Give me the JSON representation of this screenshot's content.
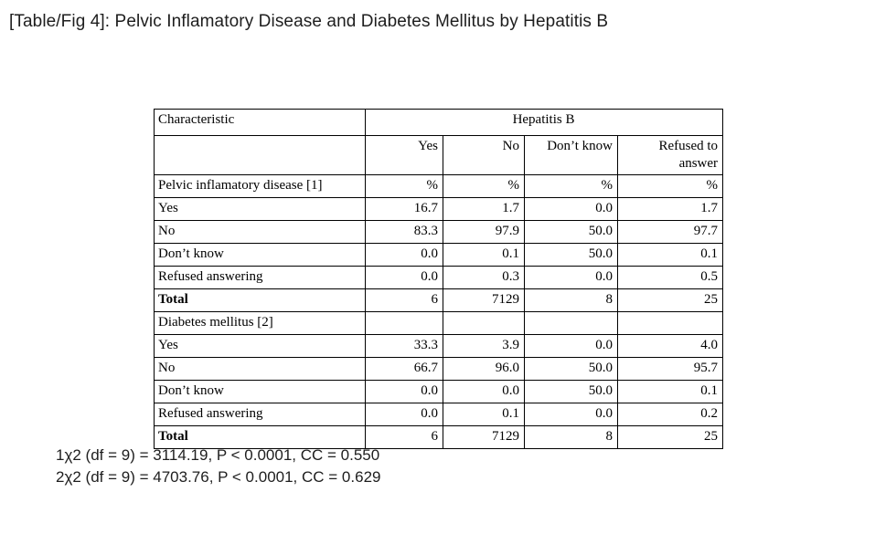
{
  "page": {
    "title": "[Table/Fig 4]: Pelvic Inflamatory Disease and Diabetes Mellitus by Hepatitis B"
  },
  "table": {
    "corner_header": "Characteristic",
    "group_header": "Hepatitis B",
    "columns": [
      "Yes",
      "No",
      "Don’t know",
      "Refused to answer"
    ],
    "sections": [
      {
        "label": "Pelvic inflamatory disease [1]",
        "units": [
          "%",
          "%",
          "%",
          "%"
        ],
        "rows": [
          {
            "label": "Yes",
            "values": [
              "16.7",
              "1.7",
              "0.0",
              "1.7"
            ]
          },
          {
            "label": "No",
            "values": [
              "83.3",
              "97.9",
              "50.0",
              "97.7"
            ]
          },
          {
            "label": "Don’t know",
            "values": [
              "0.0",
              "0.1",
              "50.0",
              "0.1"
            ]
          },
          {
            "label": "Refused answering",
            "values": [
              "0.0",
              "0.3",
              "0.0",
              "0.5"
            ]
          }
        ],
        "total": {
          "label": "Total",
          "values": [
            "6",
            "7129",
            "8",
            "25"
          ]
        }
      },
      {
        "label": "Diabetes mellitus [2]",
        "units": [
          "",
          "",
          "",
          ""
        ],
        "rows": [
          {
            "label": "Yes",
            "values": [
              "33.3",
              "3.9",
              "0.0",
              "4.0"
            ]
          },
          {
            "label": "No",
            "values": [
              "66.7",
              "96.0",
              "50.0",
              "95.7"
            ]
          },
          {
            "label": "Don’t know",
            "values": [
              "0.0",
              "0.0",
              "50.0",
              "0.1"
            ]
          },
          {
            "label": "Refused answering",
            "values": [
              "0.0",
              "0.1",
              "0.0",
              "0.2"
            ]
          }
        ],
        "total": {
          "label": "Total",
          "values": [
            "6",
            "7129",
            "8",
            "25"
          ]
        }
      }
    ]
  },
  "footnotes": [
    "1χ2 (df = 9) = 3114.19, P < 0.0001, CC = 0.550",
    "2χ2 (df = 9) = 4703.76, P < 0.0001, CC = 0.629"
  ],
  "colors": {
    "text": "#1e1e1e",
    "table_text": "#000000",
    "border": "#000000",
    "background": "#ffffff"
  }
}
